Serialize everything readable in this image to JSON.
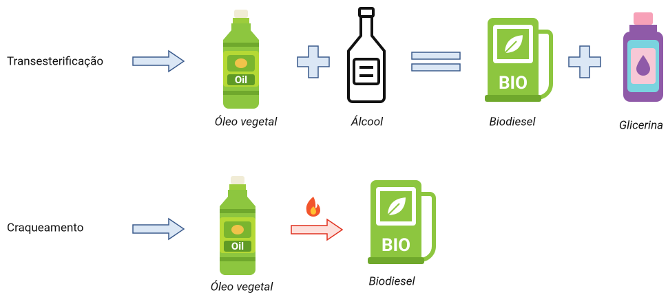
{
  "rows": [
    {
      "label": "Transesterificação",
      "items": [
        {
          "label": "Óleo vegetal"
        },
        {
          "label": "Álcool"
        },
        {
          "label": "Biodiesel"
        },
        {
          "label": "Glicerina"
        }
      ]
    },
    {
      "label": "Craqueamento",
      "items": [
        {
          "label": "Óleo vegetal"
        },
        {
          "label": "Biodiesel"
        }
      ]
    }
  ],
  "icons": {
    "oil": "Oil",
    "bio": "BIO"
  }
}
